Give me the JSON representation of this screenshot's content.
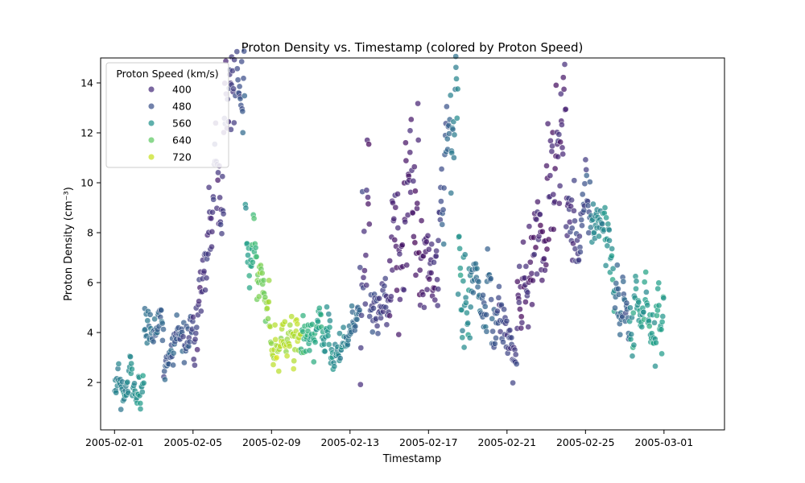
{
  "chart_data": {
    "type": "scatter",
    "title": "Proton Density vs. Timestamp (colored by Proton Speed)",
    "xlabel": "Timestamp",
    "ylabel": "Proton Density (cm⁻³)",
    "xlim": [
      "2005-01-31T07:00",
      "2005-03-04T02:00"
    ],
    "ylim": [
      0.1,
      15.0
    ],
    "x_ticks": [
      "2005-02-01",
      "2005-02-05",
      "2005-02-09",
      "2005-02-13",
      "2005-02-17",
      "2005-02-21",
      "2005-02-25",
      "2005-03-01"
    ],
    "y_ticks": [
      2,
      4,
      6,
      8,
      10,
      12,
      14
    ],
    "grid": false,
    "legend": {
      "title": "Proton Speed (km/s)",
      "placement": "top-left",
      "entries": [
        {
          "label": "400",
          "color": "#472d7b"
        },
        {
          "label": "480",
          "color": "#3b528b"
        },
        {
          "label": "560",
          "color": "#21918c"
        },
        {
          "label": "640",
          "color": "#5ec962"
        },
        {
          "label": "720",
          "color": "#c8e020"
        }
      ]
    },
    "colormap": "viridis",
    "color_range": [
      350,
      760
    ],
    "segments": [
      {
        "start": "2005-02-01T00:00",
        "end": "2005-02-02T12:00",
        "density": [
          1.8,
          2.3
        ],
        "speed": [
          520,
          560
        ],
        "spread": 0.55
      },
      {
        "start": "2005-02-02T12:00",
        "end": "2005-02-03T12:00",
        "density": [
          4.5,
          4.2
        ],
        "speed": [
          500,
          480
        ],
        "spread": 0.5
      },
      {
        "start": "2005-02-03T12:00",
        "end": "2005-02-05T00:00",
        "density": [
          3.0,
          3.8
        ],
        "speed": [
          470,
          440
        ],
        "spread": 0.55
      },
      {
        "start": "2005-02-05T00:00",
        "end": "2005-02-05T20:00",
        "density": [
          3.6,
          8.5
        ],
        "speed": [
          420,
          410
        ],
        "spread": 1.4
      },
      {
        "start": "2005-02-05T20:00",
        "end": "2005-02-06T14:00",
        "density": [
          9.5,
          10.5
        ],
        "speed": [
          400,
          410
        ],
        "spread": 1.8
      },
      {
        "start": "2005-02-06T14:00",
        "end": "2005-02-07T16:00",
        "density": [
          13.0,
          13.5
        ],
        "speed": [
          400,
          460
        ],
        "spread": 1.4
      },
      {
        "start": "2005-02-07T16:00",
        "end": "2005-02-08T06:00",
        "density": [
          9.5,
          6.0
        ],
        "speed": [
          560,
          640
        ],
        "spread": 1.3
      },
      {
        "start": "2005-02-08T06:00",
        "end": "2005-02-09T00:00",
        "density": [
          6.0,
          4.2
        ],
        "speed": [
          660,
          700
        ],
        "spread": 0.9
      },
      {
        "start": "2005-02-09T00:00",
        "end": "2005-02-10T12:00",
        "density": [
          3.6,
          3.4
        ],
        "speed": [
          710,
          720
        ],
        "spread": 0.6
      },
      {
        "start": "2005-02-10T12:00",
        "end": "2005-02-12T00:00",
        "density": [
          3.6,
          4.0
        ],
        "speed": [
          620,
          560
        ],
        "spread": 0.6
      },
      {
        "start": "2005-02-12T00:00",
        "end": "2005-02-13T12:00",
        "density": [
          2.6,
          4.8
        ],
        "speed": [
          560,
          480
        ],
        "spread": 0.5
      },
      {
        "start": "2005-02-13T12:00",
        "end": "2005-02-14T00:00",
        "density": [
          5.5,
          12.0
        ],
        "speed": [
          420,
          380
        ],
        "spread": 2.5
      },
      {
        "start": "2005-02-14T00:00",
        "end": "2005-02-15T00:00",
        "density": [
          5.0,
          5.0
        ],
        "speed": [
          430,
          420
        ],
        "spread": 0.7
      },
      {
        "start": "2005-02-15T00:00",
        "end": "2005-02-16T12:00",
        "density": [
          6.5,
          11.0
        ],
        "speed": [
          390,
          380
        ],
        "spread": 2.2
      },
      {
        "start": "2005-02-16T12:00",
        "end": "2005-02-17T12:00",
        "density": [
          6.0,
          6.0
        ],
        "speed": [
          380,
          400
        ],
        "spread": 1.3
      },
      {
        "start": "2005-02-17T12:00",
        "end": "2005-02-18T12:00",
        "density": [
          9.0,
          13.5
        ],
        "speed": [
          430,
          540
        ],
        "spread": 2.2
      },
      {
        "start": "2005-02-18T12:00",
        "end": "2005-02-19T04:00",
        "density": [
          6.0,
          4.0
        ],
        "speed": [
          560,
          540
        ],
        "spread": 1.3
      },
      {
        "start": "2005-02-19T04:00",
        "end": "2005-02-20T12:00",
        "density": [
          6.0,
          4.5
        ],
        "speed": [
          500,
          460
        ],
        "spread": 1.0
      },
      {
        "start": "2005-02-20T12:00",
        "end": "2005-02-21T12:00",
        "density": [
          5.0,
          3.0
        ],
        "speed": [
          440,
          420
        ],
        "spread": 0.8
      },
      {
        "start": "2005-02-21T12:00",
        "end": "2005-02-23T00:00",
        "density": [
          5.0,
          7.5
        ],
        "speed": [
          390,
          380
        ],
        "spread": 1.3
      },
      {
        "start": "2005-02-23T00:00",
        "end": "2005-02-24T00:00",
        "density": [
          9.0,
          12.0
        ],
        "speed": [
          380,
          390
        ],
        "spread": 2.2
      },
      {
        "start": "2005-02-24T00:00",
        "end": "2005-02-25T06:00",
        "density": [
          7.0,
          9.5
        ],
        "speed": [
          400,
          460
        ],
        "spread": 1.3
      },
      {
        "start": "2005-02-25T06:00",
        "end": "2005-02-26T12:00",
        "density": [
          8.5,
          6.5
        ],
        "speed": [
          530,
          560
        ],
        "spread": 0.8
      },
      {
        "start": "2005-02-26T12:00",
        "end": "2005-02-27T06:00",
        "density": [
          5.0,
          4.0
        ],
        "speed": [
          490,
          470
        ],
        "spread": 0.9
      },
      {
        "start": "2005-02-27T06:00",
        "end": "2005-03-01T00:00",
        "density": [
          5.0,
          4.5
        ],
        "speed": [
          560,
          580
        ],
        "spread": 0.9
      }
    ]
  }
}
